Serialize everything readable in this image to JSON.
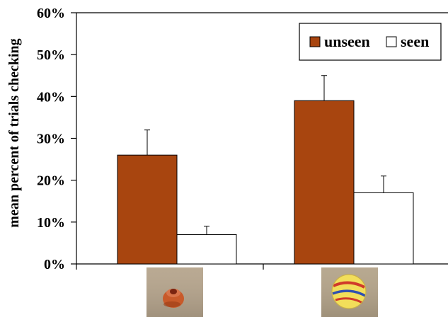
{
  "chart_data": {
    "type": "bar",
    "title": "",
    "xlabel": "",
    "ylabel": "mean percent of trials checking",
    "ylim": [
      0,
      60
    ],
    "yticks": [
      "0%",
      "10%",
      "20%",
      "30%",
      "40%",
      "50%",
      "60%"
    ],
    "categories": [
      "",
      ""
    ],
    "series": [
      {
        "name": "unseen",
        "values": [
          26,
          39
        ],
        "error_upper": [
          32,
          45
        ],
        "color": "#a8450f"
      },
      {
        "name": "seen",
        "values": [
          7,
          17
        ],
        "error_upper": [
          9,
          21
        ],
        "color": "#ffffff"
      }
    ],
    "legend": {
      "placement": "top-right",
      "entries": [
        "unseen",
        "seen"
      ]
    },
    "grid": false,
    "category_icons": [
      "bead-icon",
      "ball-icon"
    ]
  }
}
